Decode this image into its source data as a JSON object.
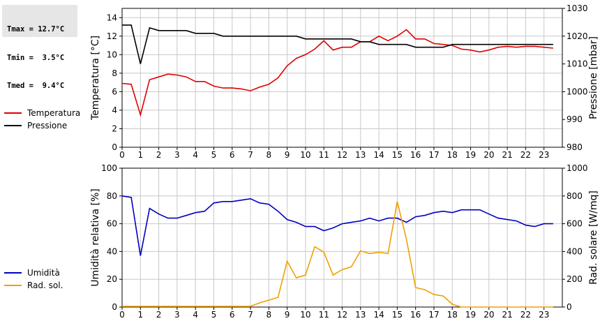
{
  "stats": {
    "tmax": "Tmax = 12.7°C",
    "tmin": "Tmin =  3.5°C",
    "tmed": "Tmed =  9.4°C"
  },
  "colors": {
    "temperature": "#e00000",
    "pressure": "#000000",
    "humidity": "#0000c0",
    "radiation": "#f0a000"
  },
  "chart_data": [
    {
      "type": "line",
      "x_ticks": [
        0,
        1,
        2,
        3,
        4,
        5,
        6,
        7,
        8,
        9,
        10,
        11,
        12,
        13,
        14,
        15,
        16,
        17,
        18,
        19,
        20,
        21,
        22,
        23
      ],
      "xlim": [
        0,
        24
      ],
      "ylabel": "Temperatura [°C]",
      "ylim": [
        0,
        15
      ],
      "yticks": [
        0,
        2,
        4,
        6,
        8,
        10,
        12,
        14
      ],
      "y2label": "Pressione [mbar]",
      "y2lim": [
        980,
        1030
      ],
      "y2ticks": [
        980,
        990,
        1000,
        1010,
        1020,
        1030
      ],
      "grid": true,
      "legend_position": "left",
      "series": [
        {
          "name": "Temperatura",
          "axis": "left",
          "x": [
            0,
            0.5,
            1,
            1.5,
            2,
            2.5,
            3,
            3.5,
            4,
            4.5,
            5,
            5.5,
            6,
            6.5,
            7,
            7.5,
            8,
            8.5,
            9,
            9.5,
            10,
            10.5,
            11,
            11.5,
            12,
            12.5,
            13,
            13.5,
            14,
            14.5,
            15,
            15.5,
            16,
            16.5,
            17,
            17.5,
            18,
            18.5,
            19,
            19.5,
            20,
            20.5,
            21,
            21.5,
            22,
            22.5,
            23,
            23.5
          ],
          "values": [
            6.9,
            6.8,
            3.5,
            7.3,
            7.6,
            7.9,
            7.8,
            7.6,
            7.1,
            7.1,
            6.6,
            6.4,
            6.4,
            6.3,
            6.1,
            6.5,
            6.8,
            7.5,
            8.8,
            9.6,
            10.0,
            10.6,
            11.5,
            10.5,
            10.8,
            10.8,
            11.4,
            11.4,
            12.0,
            11.5,
            12.0,
            12.7,
            11.7,
            11.7,
            11.2,
            11.1,
            11.0,
            10.6,
            10.5,
            10.3,
            10.5,
            10.8,
            10.9,
            10.8,
            10.9,
            10.9,
            10.8,
            10.7
          ]
        },
        {
          "name": "Pressione",
          "axis": "right",
          "x": [
            0,
            0.5,
            1,
            1.5,
            2,
            2.5,
            3,
            3.5,
            4,
            4.5,
            5,
            5.5,
            6,
            6.5,
            7,
            7.5,
            8,
            8.5,
            9,
            9.5,
            10,
            10.5,
            11,
            11.5,
            12,
            12.5,
            13,
            13.5,
            14,
            14.5,
            15,
            15.5,
            16,
            16.5,
            17,
            17.5,
            18,
            18.5,
            19,
            19.5,
            20,
            20.5,
            21,
            21.5,
            22,
            22.5,
            23,
            23.5
          ],
          "values": [
            1024,
            1024,
            1010,
            1023,
            1022,
            1022,
            1022,
            1022,
            1021,
            1021,
            1021,
            1020,
            1020,
            1020,
            1020,
            1020,
            1020,
            1020,
            1020,
            1020,
            1019,
            1019,
            1019,
            1019,
            1019,
            1019,
            1018,
            1018,
            1017,
            1017,
            1017,
            1017,
            1016,
            1016,
            1016,
            1016,
            1017,
            1017,
            1017,
            1017,
            1017,
            1017,
            1017,
            1017,
            1017,
            1017,
            1017,
            1017
          ]
        }
      ]
    },
    {
      "type": "line",
      "x_ticks": [
        0,
        1,
        2,
        3,
        4,
        5,
        6,
        7,
        8,
        9,
        10,
        11,
        12,
        13,
        14,
        15,
        16,
        17,
        18,
        19,
        20,
        21,
        22,
        23
      ],
      "xlim": [
        0,
        24
      ],
      "ylabel": "Umidità relativa [%]",
      "ylim": [
        0,
        100
      ],
      "yticks": [
        0,
        20,
        40,
        60,
        80,
        100
      ],
      "y2label": "Rad. solare [W/mq]",
      "y2lim": [
        0,
        1000
      ],
      "y2ticks": [
        0,
        200,
        400,
        600,
        800,
        1000
      ],
      "grid": true,
      "legend_position": "left",
      "series": [
        {
          "name": "Umidità",
          "axis": "left",
          "x": [
            0,
            0.5,
            1,
            1.5,
            2,
            2.5,
            3,
            3.5,
            4,
            4.5,
            5,
            5.5,
            6,
            6.5,
            7,
            7.5,
            8,
            8.5,
            9,
            9.5,
            10,
            10.5,
            11,
            11.5,
            12,
            12.5,
            13,
            13.5,
            14,
            14.5,
            15,
            15.5,
            16,
            16.5,
            17,
            17.5,
            18,
            18.5,
            19,
            19.5,
            20,
            20.5,
            21,
            21.5,
            22,
            22.5,
            23,
            23.5
          ],
          "values": [
            80,
            79,
            37,
            71,
            67,
            64,
            64,
            66,
            68,
            69,
            75,
            76,
            76,
            77,
            78,
            75,
            74,
            69,
            63,
            61,
            58,
            58,
            55,
            57,
            60,
            61,
            62,
            64,
            62,
            64,
            64,
            61,
            65,
            66,
            68,
            69,
            68,
            70,
            70,
            70,
            67,
            64,
            63,
            62,
            59,
            58,
            60,
            60
          ]
        },
        {
          "name": "Rad. sol.",
          "axis": "right",
          "x": [
            0,
            0.5,
            1,
            1.5,
            2,
            2.5,
            3,
            3.5,
            4,
            4.5,
            5,
            5.5,
            6,
            6.5,
            7,
            7.5,
            8,
            8.5,
            9,
            9.5,
            10,
            10.5,
            11,
            11.5,
            12,
            12.5,
            13,
            13.5,
            14,
            14.5,
            15,
            15.5,
            16,
            16.5,
            17,
            17.5,
            18,
            18.5,
            19,
            19.5,
            20,
            20.5,
            21,
            21.5,
            22,
            22.5,
            23,
            23.5
          ],
          "values": [
            5,
            5,
            5,
            5,
            5,
            5,
            5,
            5,
            5,
            5,
            5,
            5,
            5,
            5,
            5,
            30,
            50,
            70,
            330,
            210,
            230,
            435,
            395,
            230,
            270,
            290,
            405,
            385,
            395,
            385,
            760,
            490,
            140,
            125,
            90,
            80,
            20,
            0,
            0,
            0,
            0,
            0,
            0,
            0,
            0,
            0,
            0,
            0
          ]
        }
      ]
    }
  ]
}
